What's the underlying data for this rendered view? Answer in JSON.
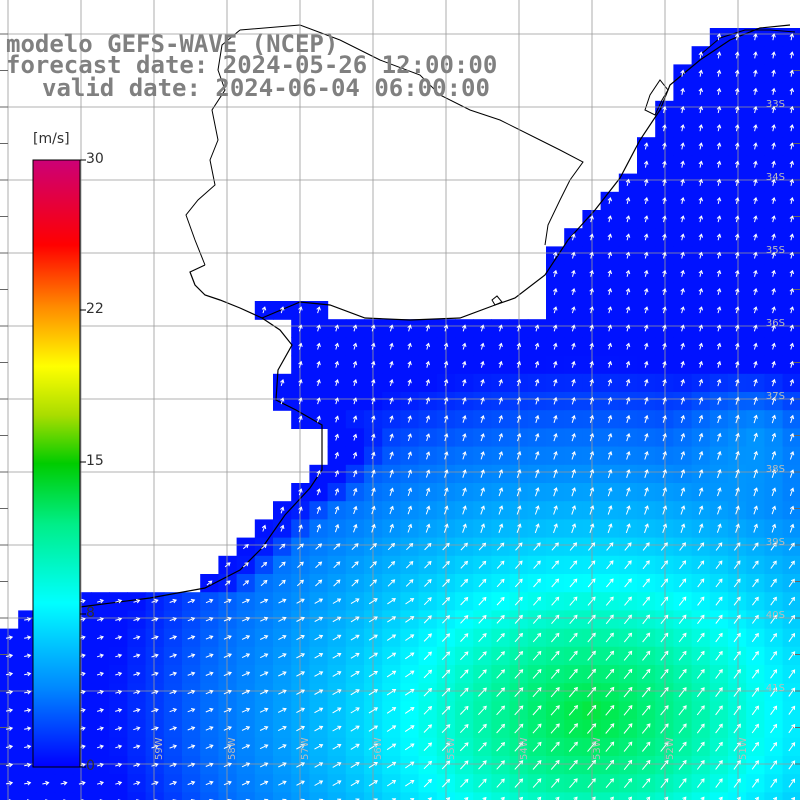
{
  "title": {
    "line1": "modelo GEFS-WAVE (NCEP)",
    "line2": "forecast date: 2024-05-26 12:00:00",
    "line3": "valid date: 2024-06-04 06:00:00"
  },
  "colorbar": {
    "unit": "[m/s]",
    "ticks": [
      "30",
      "22",
      "15",
      "8",
      "0"
    ],
    "tick_values": [
      30,
      22,
      15,
      8,
      0
    ],
    "range": [
      0,
      30
    ],
    "colors": [
      "#0000ff",
      "#00aaff",
      "#00ffff",
      "#00ee66",
      "#00cc00",
      "#66dd00",
      "#ffff00",
      "#ffaa00",
      "#ff5500",
      "#ff0000",
      "#ee0044",
      "#cc0077"
    ]
  },
  "map": {
    "latitude_labels": [
      "33S",
      "34S",
      "35S",
      "36S",
      "37S",
      "38S",
      "39S",
      "40S",
      "41S"
    ],
    "longitude_labels": [
      "59W",
      "58W",
      "57W",
      "56W",
      "55W",
      "54W",
      "53W",
      "52W",
      "51W"
    ],
    "land_color": "#ffffff",
    "grid_color": "#999999",
    "coast_color": "#000000",
    "arrow_color": "#ffffff"
  }
}
